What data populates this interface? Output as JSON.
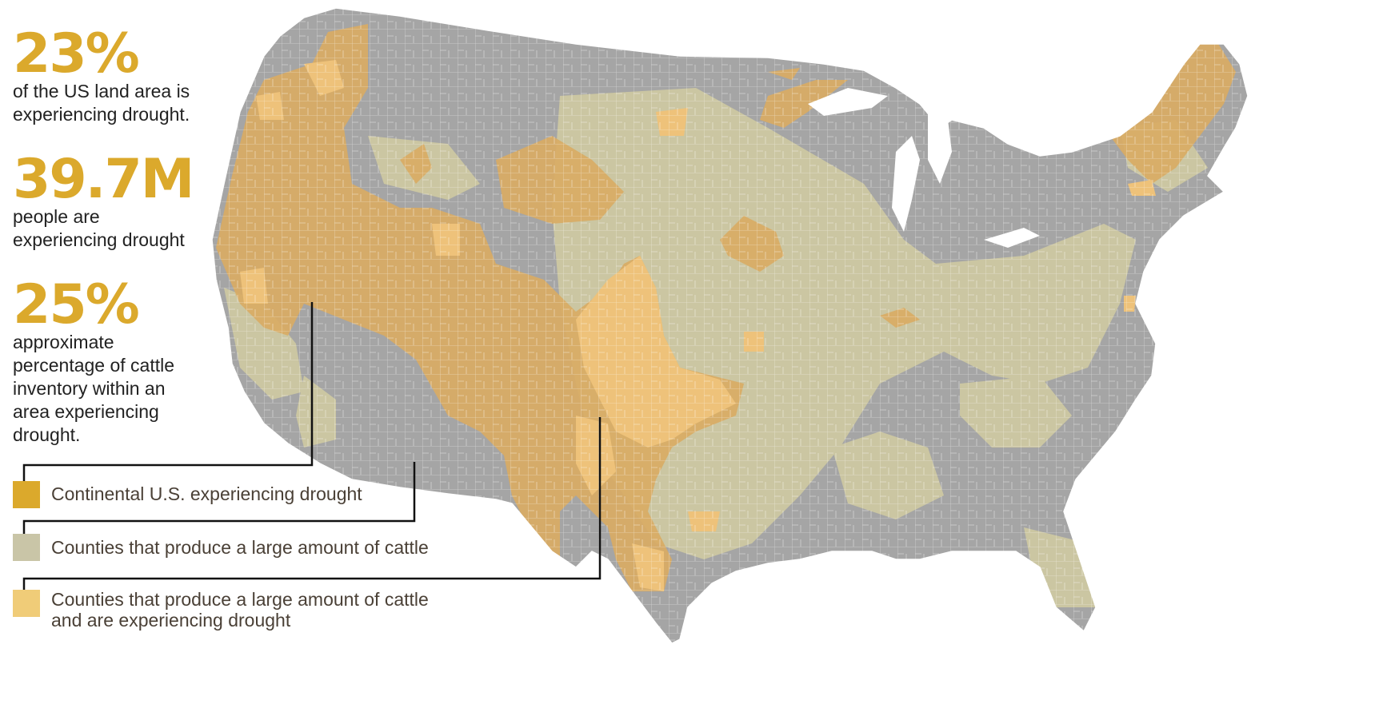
{
  "stats": [
    {
      "value": "23%",
      "lines": [
        "of the US land area is",
        "experiencing drought."
      ]
    },
    {
      "value": "39.7M",
      "lines": [
        "people are",
        "experiencing drought"
      ]
    },
    {
      "value": "25%",
      "lines": [
        "approximate",
        "percentage of cattle",
        "inventory within an",
        "area experiencing",
        "drought."
      ]
    }
  ],
  "legend": [
    {
      "lines": [
        "Continental U.S. experiencing drought"
      ],
      "color": "#dba92c"
    },
    {
      "lines": [
        "Counties that produce a large amount of cattle"
      ],
      "color": "#c9c5a7"
    },
    {
      "lines": [
        "Counties that produce a large amount of cattle",
        "and are experiencing drought"
      ],
      "color": "#f0cc78"
    }
  ],
  "colors": {
    "no_drought": "#a5a5a5",
    "drought": "#d9ab64",
    "cattle": "#cbc6a2",
    "cattle_drought": "#eec27a",
    "county_lines": "#ffffff"
  }
}
